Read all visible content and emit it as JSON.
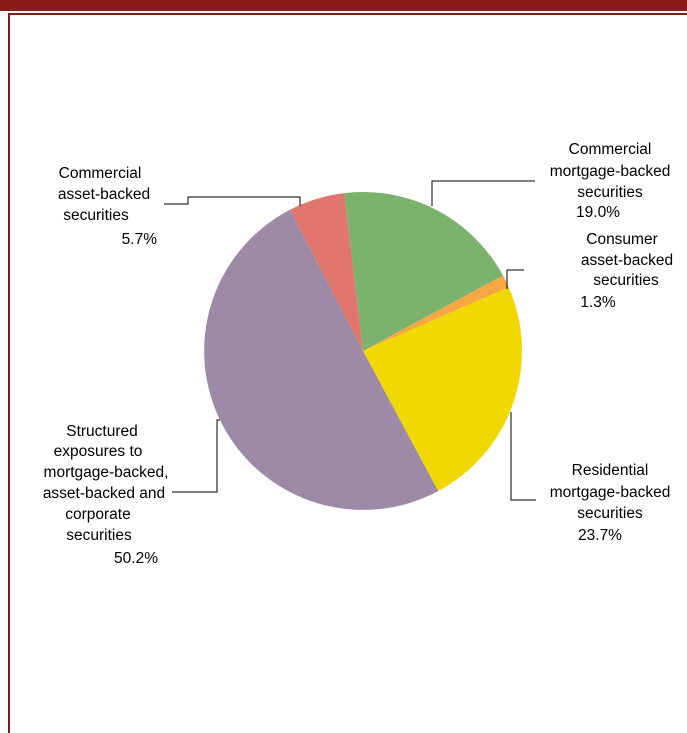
{
  "chart_data": {
    "type": "pie",
    "title": "",
    "start_angle_deg": 353.2,
    "direction": "clockwise",
    "slices": [
      {
        "label": [
          "Commercial",
          "mortgage-backed",
          "securities"
        ],
        "value_label": "19.0%",
        "value": 19.0,
        "color": "#7bb36e"
      },
      {
        "label": [
          "Consumer",
          "asset-backed",
          "securities"
        ],
        "value_label": "1.3%",
        "value": 1.3,
        "color": "#f5a742"
      },
      {
        "label": [
          "Residential",
          "mortgage-backed",
          "securities"
        ],
        "value_label": "23.7%",
        "value": 23.7,
        "color": "#f0d800"
      },
      {
        "label": [
          "Structured",
          "exposures to",
          "mortgage-backed,",
          "asset-backed and",
          "corporate",
          "securities"
        ],
        "value_label": "50.2%",
        "value": 50.2,
        "color": "#9d8aa6"
      },
      {
        "label": [
          "Commercial",
          "asset-backed",
          "securities"
        ],
        "value_label": "5.7%",
        "value": 5.7,
        "color": "#e0766e"
      }
    ]
  },
  "colors": {
    "accent": "#8b1a1a",
    "leader_line": "#000000"
  }
}
